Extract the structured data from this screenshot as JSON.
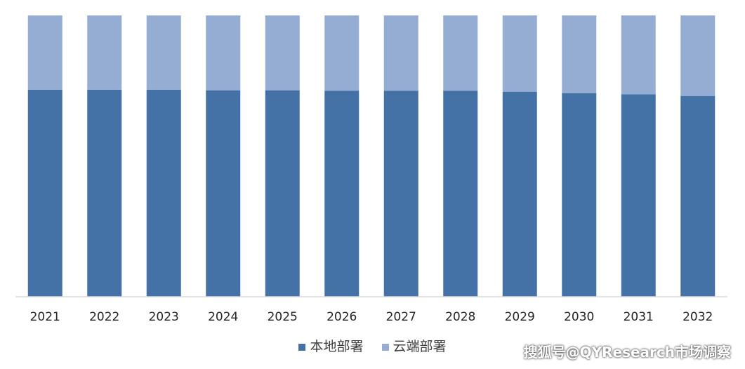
{
  "chart_data": {
    "type": "bar",
    "stacked": "100%",
    "categories": [
      "2021",
      "2022",
      "2023",
      "2024",
      "2025",
      "2026",
      "2027",
      "2028",
      "2029",
      "2030",
      "2031",
      "2032"
    ],
    "series": [
      {
        "name": "本地部署",
        "color": "#4472a6",
        "values": [
          73.6,
          73.6,
          73.6,
          73.4,
          73.4,
          73.2,
          73.2,
          73.2,
          72.9,
          72.4,
          72.0,
          71.4
        ]
      },
      {
        "name": "云端部署",
        "color": "#95acd3",
        "values": [
          26.4,
          26.4,
          26.4,
          26.6,
          26.6,
          26.8,
          26.8,
          26.8,
          27.1,
          27.6,
          28.0,
          28.6
        ]
      }
    ],
    "ylim": [
      0,
      100
    ],
    "grid": false,
    "legend_position": "bottom"
  },
  "watermark": "搜狐号@QYResearch市场调察"
}
